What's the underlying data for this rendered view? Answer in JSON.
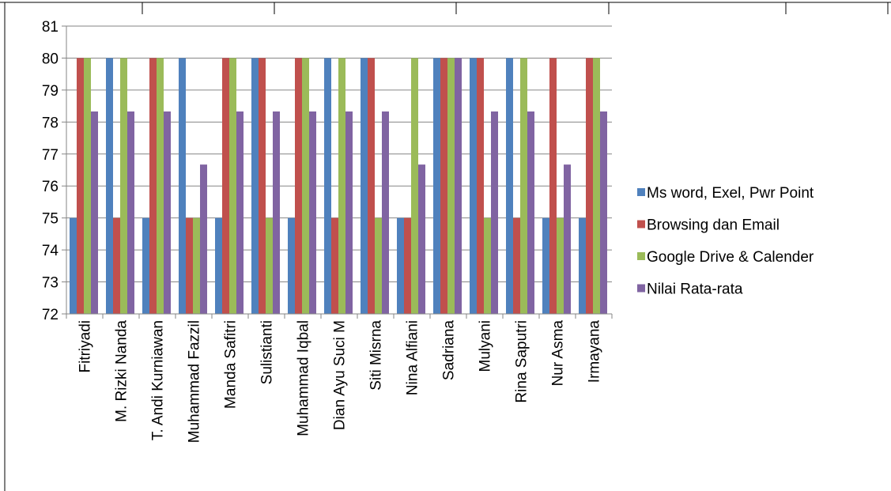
{
  "chart_data": {
    "type": "bar",
    "categories": [
      "Fitriyadi",
      "M. Rizki Nanda",
      "T. Andi Kurniawan",
      "Muhammad Fazzil",
      "Manda Safitri",
      "Sulistianti",
      "Muhammad Iqbal",
      "Dian Ayu Suci M",
      "Siti Misrna",
      "Nina Alfiani",
      "Sadriana",
      "Mulyani",
      "Rina Saputri",
      "Nur Asma",
      "Irmayana"
    ],
    "series": [
      {
        "name": "Ms word, Exel, Pwr Point",
        "color": "#4F81BD",
        "values": [
          75,
          80,
          75,
          80,
          75,
          80,
          75,
          80,
          80,
          75,
          80,
          80,
          80,
          75,
          75
        ]
      },
      {
        "name": "Browsing dan Email",
        "color": "#C0504D",
        "values": [
          80,
          75,
          80,
          75,
          80,
          80,
          80,
          75,
          80,
          75,
          80,
          80,
          75,
          80,
          80
        ]
      },
      {
        "name": "Google Drive & Calender",
        "color": "#9BBB59",
        "values": [
          80,
          80,
          80,
          75,
          80,
          75,
          80,
          80,
          75,
          80,
          80,
          75,
          80,
          75,
          80
        ]
      },
      {
        "name": "Nilai Rata-rata",
        "color": "#8064A2",
        "values": [
          78.33,
          78.33,
          78.33,
          76.67,
          78.33,
          78.33,
          78.33,
          78.33,
          78.33,
          76.67,
          80,
          78.33,
          78.33,
          76.67,
          78.33
        ]
      }
    ],
    "ylim": [
      72,
      81
    ],
    "yticks": [
      72,
      73,
      74,
      75,
      76,
      77,
      78,
      79,
      80,
      81
    ],
    "grid": true,
    "legend_position": "right",
    "title": "",
    "xlabel": "",
    "ylabel": ""
  }
}
